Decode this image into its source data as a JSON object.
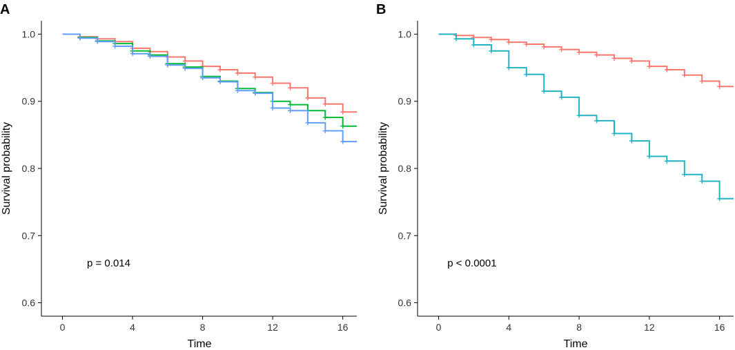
{
  "chart_data": [
    {
      "type": "line",
      "step": true,
      "panel_label": "A",
      "xlabel": "Time",
      "ylabel": "Survival probability",
      "xlim": [
        -1.2,
        16.8
      ],
      "ylim": [
        0.58,
        1.02
      ],
      "xticks": [
        0,
        4,
        8,
        12,
        16
      ],
      "yticks": [
        0.6,
        0.7,
        0.8,
        0.9,
        1.0
      ],
      "ytick_labels": [
        "0.6",
        "0.7",
        "0.8",
        "0.9",
        "1.0"
      ],
      "annotation": "p = 0.014",
      "annotation_at": [
        1.4,
        0.654
      ],
      "series": [
        {
          "name": "red",
          "color": "#F8766D",
          "times": [
            0,
            1,
            2,
            3,
            4,
            5,
            6,
            7,
            8,
            9,
            10,
            11,
            12,
            13,
            14,
            15,
            16,
            16.8
          ],
          "values": [
            1.0,
            0.996,
            0.993,
            0.989,
            0.979,
            0.974,
            0.966,
            0.96,
            0.952,
            0.947,
            0.942,
            0.936,
            0.927,
            0.92,
            0.905,
            0.896,
            0.884,
            0.884
          ],
          "censor": [
            1,
            2,
            3,
            4,
            5,
            6,
            7,
            8,
            9,
            10,
            11,
            12,
            13,
            14,
            15,
            16
          ]
        },
        {
          "name": "green",
          "color": "#00BA38",
          "times": [
            0,
            1,
            2,
            3,
            4,
            5,
            6,
            7,
            8,
            9,
            10,
            11,
            12,
            13,
            14,
            15,
            16,
            16.8
          ],
          "values": [
            1.0,
            0.995,
            0.99,
            0.986,
            0.975,
            0.969,
            0.956,
            0.951,
            0.937,
            0.93,
            0.919,
            0.913,
            0.9,
            0.895,
            0.886,
            0.876,
            0.863,
            0.863
          ],
          "censor": [
            1,
            2,
            3,
            4,
            5,
            6,
            7,
            8,
            9,
            10,
            11,
            12,
            13,
            14,
            15,
            16
          ]
        },
        {
          "name": "blue",
          "color": "#619CFF",
          "times": [
            0,
            1,
            2,
            3,
            4,
            5,
            6,
            7,
            8,
            9,
            10,
            11,
            12,
            13,
            14,
            15,
            16,
            16.8
          ],
          "values": [
            1.0,
            0.994,
            0.989,
            0.982,
            0.971,
            0.967,
            0.954,
            0.949,
            0.935,
            0.929,
            0.916,
            0.912,
            0.89,
            0.886,
            0.868,
            0.856,
            0.84,
            0.84
          ],
          "censor": [
            1,
            2,
            3,
            4,
            5,
            6,
            7,
            8,
            9,
            10,
            11,
            12,
            13,
            14,
            15,
            16
          ]
        }
      ]
    },
    {
      "type": "line",
      "step": true,
      "panel_label": "B",
      "xlabel": "Time",
      "ylabel": "Survival probability",
      "xlim": [
        -1.2,
        16.8
      ],
      "ylim": [
        0.58,
        1.02
      ],
      "xticks": [
        0,
        4,
        8,
        12,
        16
      ],
      "yticks": [
        0.6,
        0.7,
        0.8,
        0.9,
        1.0
      ],
      "ytick_labels": [
        "0.6",
        "0.7",
        "0.8",
        "0.9",
        "1.0"
      ],
      "annotation": "p < 0.0001",
      "annotation_at": [
        0.5,
        0.654
      ],
      "series": [
        {
          "name": "red",
          "color": "#F8766D",
          "times": [
            0,
            1,
            2,
            3,
            4,
            5,
            6,
            7,
            8,
            9,
            10,
            11,
            12,
            13,
            14,
            15,
            16,
            16.8
          ],
          "values": [
            1.0,
            0.998,
            0.995,
            0.992,
            0.988,
            0.985,
            0.981,
            0.977,
            0.973,
            0.969,
            0.964,
            0.96,
            0.952,
            0.947,
            0.939,
            0.93,
            0.922,
            0.922
          ],
          "censor": [
            1,
            2,
            3,
            4,
            5,
            6,
            7,
            8,
            9,
            10,
            11,
            12,
            13,
            14,
            15,
            16
          ]
        },
        {
          "name": "cyan",
          "color": "#1FB3C4",
          "times": [
            0,
            1,
            2,
            3,
            4,
            5,
            6,
            7,
            8,
            9,
            10,
            11,
            12,
            13,
            14,
            15,
            16,
            16.8
          ],
          "values": [
            1.0,
            0.993,
            0.984,
            0.975,
            0.95,
            0.94,
            0.915,
            0.906,
            0.879,
            0.871,
            0.852,
            0.841,
            0.818,
            0.811,
            0.791,
            0.781,
            0.755,
            0.755
          ],
          "censor": [
            1,
            2,
            3,
            4,
            5,
            6,
            7,
            8,
            9,
            10,
            11,
            12,
            13,
            14,
            15,
            16
          ]
        }
      ]
    }
  ]
}
